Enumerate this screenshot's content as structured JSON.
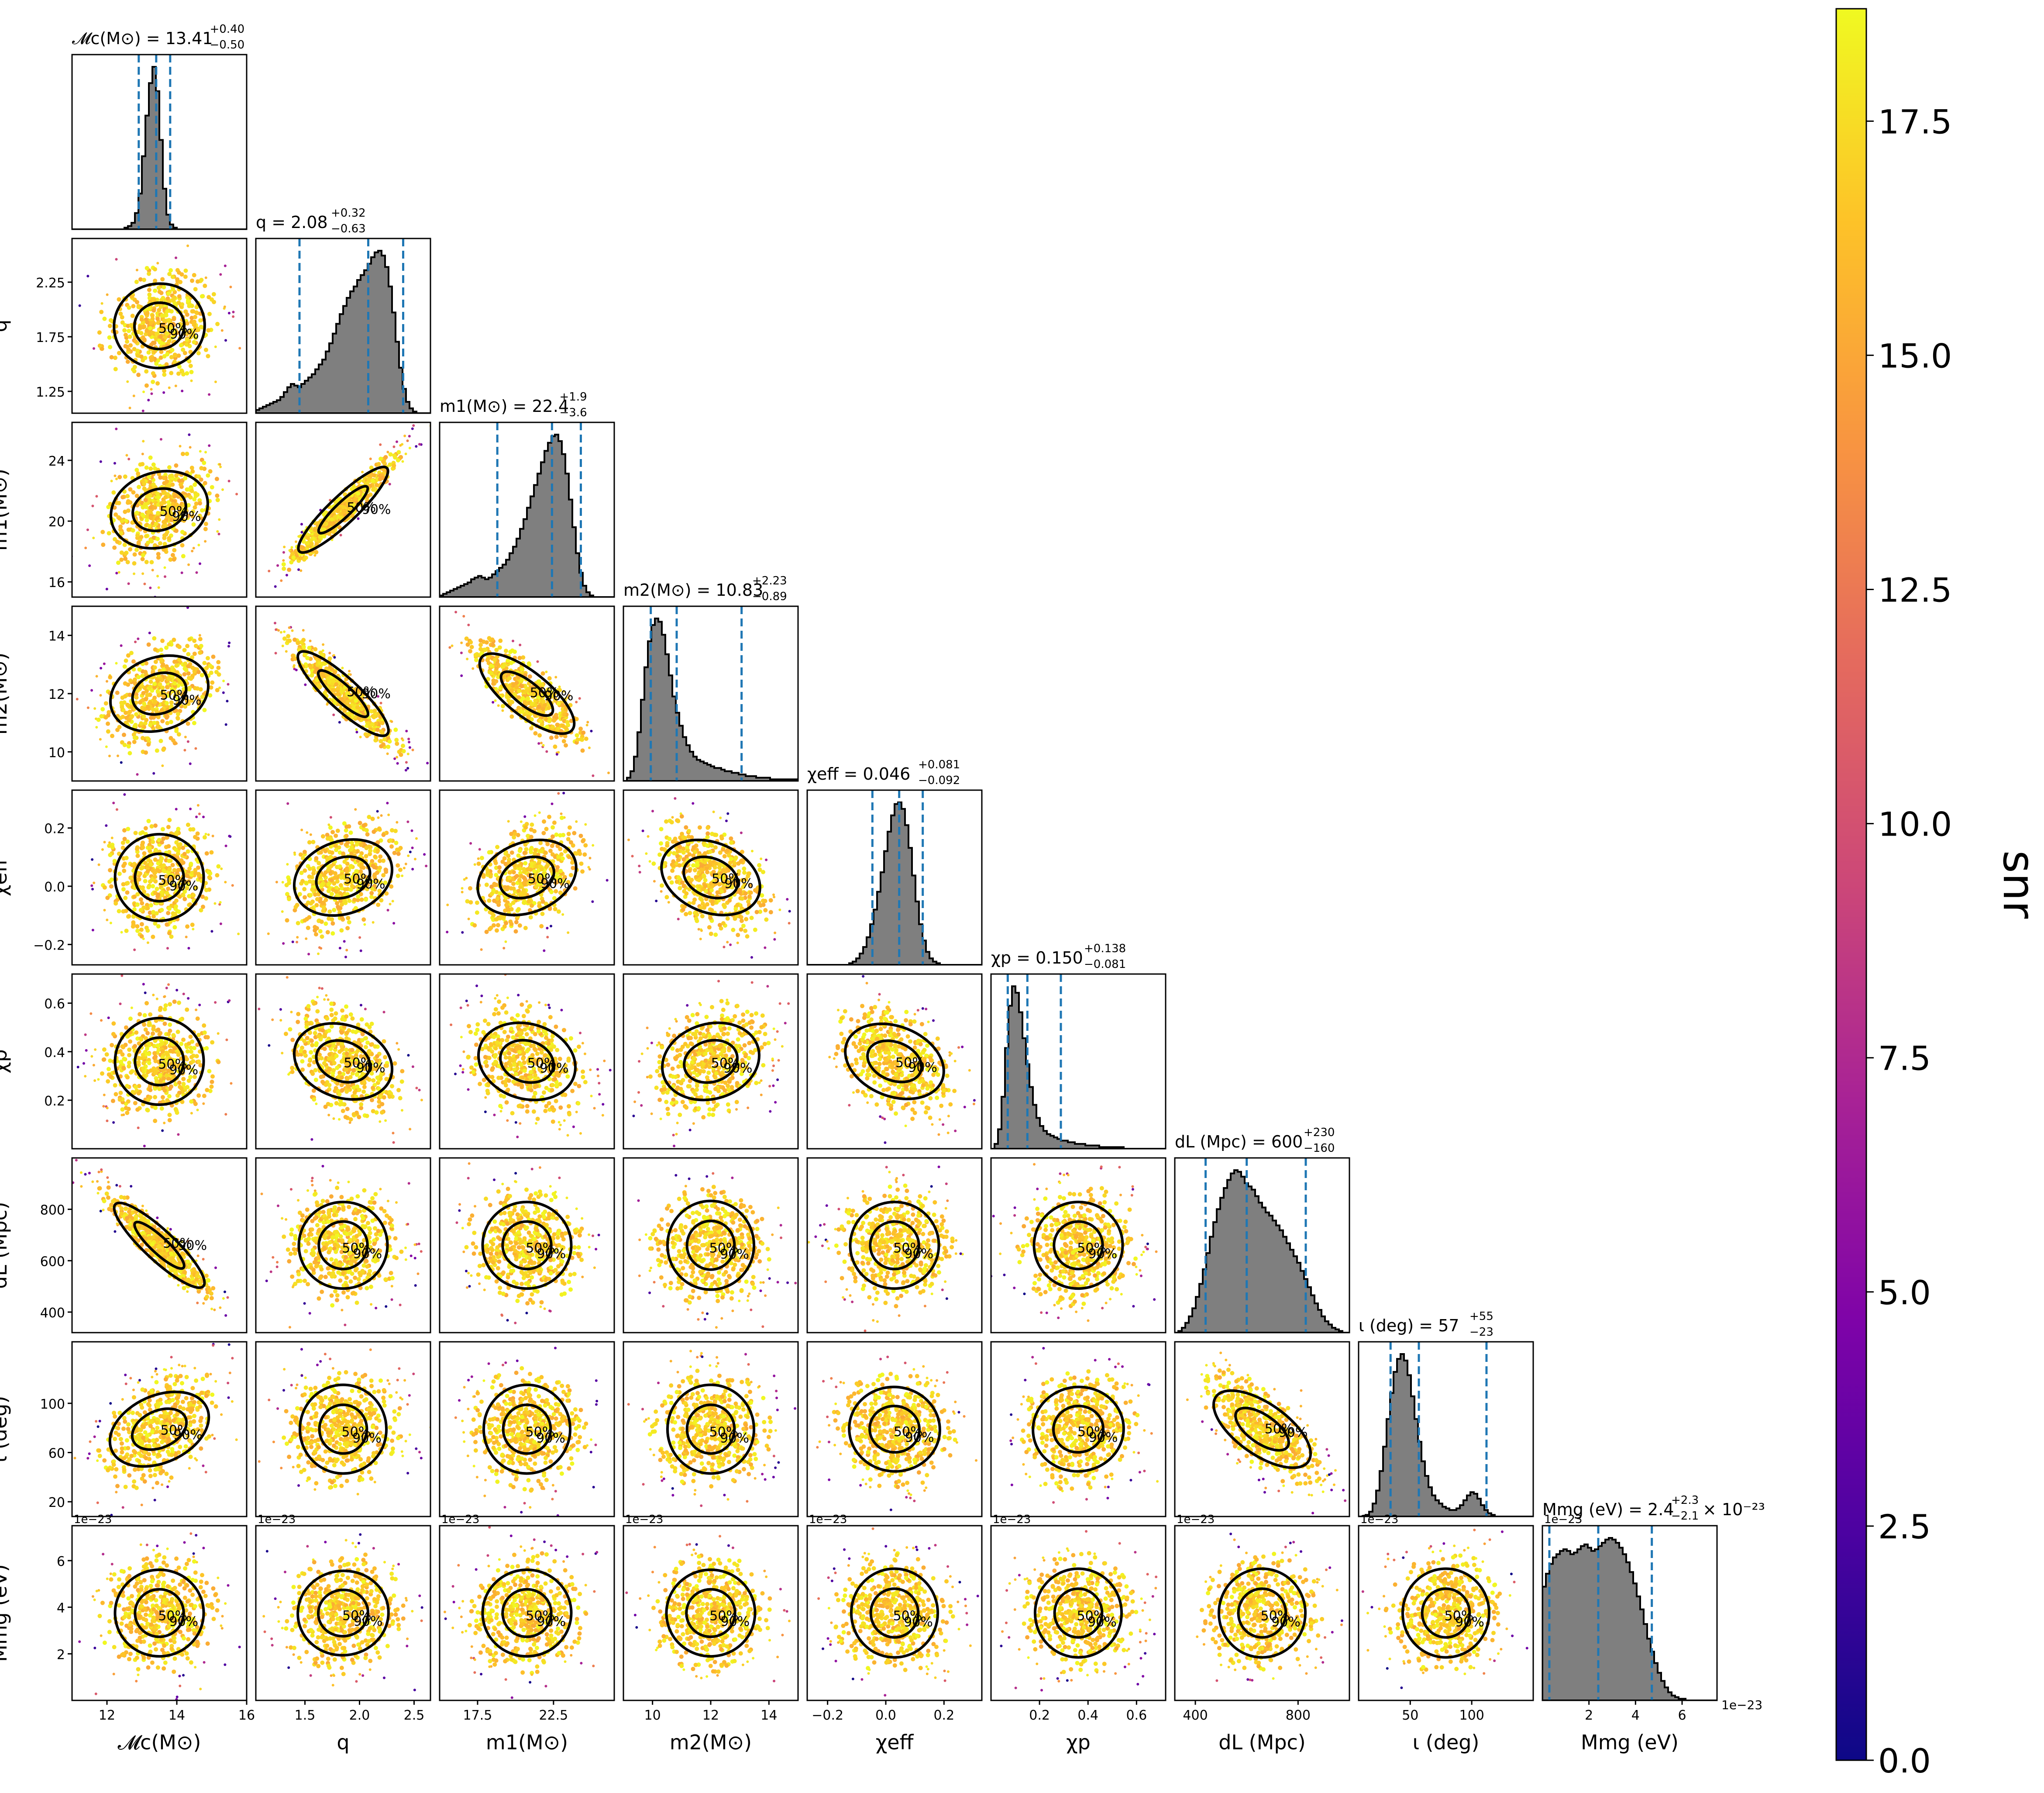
{
  "chart_data": {
    "type": "corner",
    "colorbar": {
      "label": "snr",
      "ticks": [
        "0.0",
        "2.5",
        "5.0",
        "7.5",
        "10.0",
        "12.5",
        "15.0",
        "17.5"
      ],
      "range": [
        0,
        18.7
      ],
      "colormap": "plasma"
    },
    "contour_levels": [
      "50%",
      "90%"
    ],
    "colors": {
      "hist_fill": "#7f7f7f",
      "hist_edge": "#000000",
      "quantile_line": "#1f77b4",
      "contour": "#000000"
    },
    "parameters": [
      {
        "key": "mc",
        "axis_label": "𝓜c(M⊙)",
        "range": [
          11,
          16
        ],
        "ticks": [
          {
            "v": 12,
            "t": "12"
          },
          {
            "v": 14,
            "t": "14"
          },
          {
            "v": 16,
            "t": "16"
          }
        ],
        "title": "𝓜c(M⊙) = 13.41",
        "title_sup": "+0.40",
        "title_sub": "−0.50",
        "median": 13.41,
        "lo": 12.91,
        "hi": 13.81,
        "hist": [
          0,
          0,
          0,
          0,
          0,
          0,
          0,
          0,
          0,
          0,
          0,
          0,
          0,
          0,
          0,
          1,
          2,
          4,
          10,
          22,
          45,
          70,
          90,
          100,
          85,
          55,
          25,
          9,
          3,
          1,
          0,
          0,
          0,
          0,
          0,
          0,
          0,
          0,
          0,
          0,
          0,
          0,
          0,
          0,
          0,
          0,
          0,
          0,
          0,
          0
        ]
      },
      {
        "key": "q",
        "axis_label": "q",
        "range": [
          1.05,
          2.65
        ],
        "ticks": [
          {
            "v": 1.25,
            "t": "1.25"
          },
          {
            "v": 1.75,
            "t": "1.75"
          },
          {
            "v": 2.25,
            "t": "2.25"
          }
        ],
        "xticks": [
          {
            "v": 1.5,
            "t": "1.5"
          },
          {
            "v": 2.0,
            "t": "2.0"
          },
          {
            "v": 2.5,
            "t": "2.5"
          }
        ],
        "title": "q = 2.08",
        "title_sup": "+0.32",
        "title_sub": "−0.63",
        "median": 2.08,
        "lo": 1.45,
        "hi": 2.4,
        "hist": [
          2,
          3,
          4,
          5,
          6,
          7,
          8,
          10,
          13,
          16,
          18,
          17,
          16,
          18,
          20,
          22,
          24,
          27,
          30,
          33,
          38,
          43,
          49,
          55,
          61,
          66,
          71,
          75,
          78,
          82,
          85,
          88,
          92,
          96,
          99,
          100,
          97,
          90,
          78,
          62,
          44,
          28,
          15,
          7,
          3,
          1,
          0,
          0,
          0,
          0
        ]
      },
      {
        "key": "m1",
        "axis_label": "m1(M⊙)",
        "range": [
          15.0,
          26.5
        ],
        "ticks": [
          {
            "v": 16,
            "t": "16"
          },
          {
            "v": 20,
            "t": "20"
          },
          {
            "v": 24,
            "t": "24"
          }
        ],
        "xticks": [
          {
            "v": 17.5,
            "t": "17.5"
          },
          {
            "v": 22.5,
            "t": "22.5"
          }
        ],
        "title": "m1(M⊙) = 22.4",
        "title_sup": "+1.9",
        "title_sub": "−3.6",
        "median": 22.4,
        "lo": 18.8,
        "hi": 24.3,
        "hist": [
          1,
          2,
          3,
          4,
          5,
          6,
          7,
          8,
          9,
          11,
          12,
          13,
          12,
          11,
          12,
          14,
          16,
          18,
          20,
          23,
          27,
          31,
          36,
          42,
          48,
          55,
          62,
          69,
          76,
          83,
          90,
          95,
          99,
          100,
          96,
          88,
          76,
          60,
          43,
          27,
          15,
          7,
          3,
          1,
          0,
          0,
          0,
          0,
          0,
          0
        ]
      },
      {
        "key": "m2",
        "axis_label": "m2(M⊙)",
        "range": [
          9.0,
          15.0
        ],
        "ticks": [
          {
            "v": 10,
            "t": "10"
          },
          {
            "v": 12,
            "t": "12"
          },
          {
            "v": 14,
            "t": "14"
          }
        ],
        "xticks": [
          {
            "v": 10,
            "t": "10"
          },
          {
            "v": 12,
            "t": "12"
          },
          {
            "v": 14,
            "t": "14"
          }
        ],
        "title": "m2(M⊙) = 10.83",
        "title_sup": "+2.23",
        "title_sub": "−0.89",
        "median": 10.83,
        "lo": 9.94,
        "hi": 13.06,
        "hist": [
          0,
          2,
          6,
          15,
          30,
          50,
          70,
          86,
          96,
          100,
          98,
          90,
          78,
          65,
          52,
          42,
          34,
          27,
          22,
          18,
          15,
          13,
          12,
          11,
          10,
          9,
          8,
          8,
          7,
          6,
          6,
          5,
          5,
          4,
          4,
          3,
          3,
          3,
          2,
          2,
          2,
          2,
          1,
          1,
          1,
          1,
          1,
          1,
          1,
          1
        ]
      },
      {
        "key": "chieff",
        "axis_label": "χeff",
        "range": [
          -0.27,
          0.33
        ],
        "ticks": [
          {
            "v": -0.2,
            "t": "−0.2"
          },
          {
            "v": 0.0,
            "t": "0.0"
          },
          {
            "v": 0.2,
            "t": "0.2"
          }
        ],
        "xticks": [
          {
            "v": -0.2,
            "t": "−0.2"
          },
          {
            "v": 0.0,
            "t": "0.0"
          },
          {
            "v": 0.2,
            "t": "0.2"
          }
        ],
        "title": "χeff = 0.046",
        "title_sup": "+0.081",
        "title_sub": "−0.092",
        "median": 0.046,
        "lo": -0.046,
        "hi": 0.127,
        "hist": [
          0,
          0,
          0,
          0,
          0,
          0,
          0,
          0,
          0,
          0,
          0,
          0,
          1,
          2,
          4,
          7,
          11,
          17,
          25,
          34,
          45,
          57,
          70,
          82,
          92,
          99,
          100,
          96,
          86,
          72,
          55,
          39,
          25,
          15,
          8,
          4,
          2,
          1,
          0,
          0,
          0,
          0,
          0,
          0,
          0,
          0,
          0,
          0,
          0,
          0
        ]
      },
      {
        "key": "chip",
        "axis_label": "χp",
        "range": [
          0.0,
          0.72
        ],
        "ticks": [
          {
            "v": 0.2,
            "t": "0.2"
          },
          {
            "v": 0.4,
            "t": "0.4"
          },
          {
            "v": 0.6,
            "t": "0.6"
          }
        ],
        "xticks": [
          {
            "v": 0.2,
            "t": "0.2"
          },
          {
            "v": 0.4,
            "t": "0.4"
          },
          {
            "v": 0.6,
            "t": "0.6"
          }
        ],
        "title": "χp = 0.150",
        "title_sup": "+0.138",
        "title_sub": "−0.081",
        "median": 0.15,
        "lo": 0.069,
        "hi": 0.288,
        "hist": [
          0,
          3,
          12,
          32,
          62,
          88,
          100,
          96,
          84,
          68,
          52,
          38,
          27,
          19,
          14,
          11,
          9,
          8,
          7,
          6,
          5,
          5,
          4,
          4,
          3,
          3,
          3,
          2,
          2,
          2,
          2,
          1,
          1,
          1,
          1,
          1,
          1,
          1,
          0,
          0,
          0,
          0,
          0,
          0,
          0,
          0,
          0,
          0,
          0,
          0
        ]
      },
      {
        "key": "dl",
        "axis_label": "dL (Mpc)",
        "range": [
          320,
          1000
        ],
        "ticks": [
          {
            "v": 400,
            "t": "400"
          },
          {
            "v": 600,
            "t": "600"
          },
          {
            "v": 800,
            "t": "800"
          }
        ],
        "xticks": [
          {
            "v": 400,
            "t": "400"
          },
          {
            "v": 800,
            "t": "800"
          }
        ],
        "title": "dL (Mpc) = 600",
        "title_sup": "+230",
        "title_sub": "−160",
        "median": 600,
        "lo": 440,
        "hi": 830,
        "hist": [
          0,
          1,
          3,
          6,
          10,
          15,
          22,
          30,
          39,
          49,
          59,
          68,
          76,
          83,
          89,
          94,
          98,
          100,
          99,
          96,
          92,
          90,
          88,
          84,
          80,
          77,
          74,
          72,
          69,
          66,
          63,
          59,
          55,
          51,
          47,
          43,
          38,
          33,
          28,
          23,
          18,
          14,
          10,
          7,
          5,
          3,
          2,
          1,
          0,
          0
        ]
      },
      {
        "key": "iota",
        "axis_label": "ι (deg)",
        "range": [
          8,
          150
        ],
        "ticks": [
          {
            "v": 20,
            "t": "20"
          },
          {
            "v": 60,
            "t": "60"
          },
          {
            "v": 100,
            "t": "100"
          }
        ],
        "xticks": [
          {
            "v": 50,
            "t": "50"
          },
          {
            "v": 100,
            "t": "100"
          }
        ],
        "title": "ι (deg) = 57",
        "title_sup": "+55",
        "title_sub": "−23",
        "median": 57,
        "lo": 34,
        "hi": 112,
        "hist": [
          0,
          0,
          1,
          3,
          8,
          16,
          28,
          43,
          60,
          76,
          89,
          97,
          100,
          96,
          87,
          74,
          60,
          46,
          34,
          25,
          18,
          13,
          10,
          8,
          6,
          5,
          4,
          4,
          5,
          7,
          10,
          13,
          15,
          14,
          11,
          7,
          4,
          2,
          1,
          0,
          0,
          0,
          0,
          0,
          0,
          0,
          0,
          0,
          0,
          0
        ]
      },
      {
        "key": "mmg",
        "axis_label": "Mmg (eV)",
        "range": [
          0.0,
          7.5
        ],
        "offset_text": "1e−23",
        "ticks": [
          {
            "v": 2,
            "t": "2"
          },
          {
            "v": 4,
            "t": "4"
          },
          {
            "v": 6,
            "t": "6"
          }
        ],
        "xticks": [
          {
            "v": 2,
            "t": "2"
          },
          {
            "v": 4,
            "t": "4"
          },
          {
            "v": 6,
            "t": "6"
          }
        ],
        "title": "Mmg (eV) = 2.4",
        "title_sup": "+2.3",
        "title_sub": "−2.1",
        "title_suffix": "× 10⁻²³",
        "median": 2.4,
        "lo": 0.3,
        "hi": 4.7,
        "hist": [
          70,
          78,
          84,
          88,
          90,
          92,
          93,
          92,
          90,
          91,
          93,
          95,
          96,
          94,
          92,
          93,
          95,
          97,
          99,
          100,
          99,
          97,
          94,
          90,
          85,
          79,
          72,
          64,
          56,
          47,
          38,
          30,
          23,
          17,
          12,
          8,
          5,
          3,
          2,
          1,
          1,
          0,
          0,
          0,
          0,
          0,
          0,
          0,
          0,
          0
        ]
      }
    ],
    "bottom_labels": [
      "𝓜c(M⊙)",
      "q",
      "m1(M⊙)",
      "m2(M⊙)",
      "χeff",
      "χp",
      "dL (Mpc)",
      "ι (deg)",
      "Mmg (eV)"
    ],
    "correlations": [
      [
        0.0,
        0,
        0,
        0,
        0,
        0,
        0,
        0,
        0
      ],
      [
        0.1,
        0,
        0,
        0,
        0,
        0,
        0,
        0,
        0
      ],
      [
        0.3,
        0.95,
        0,
        0,
        0,
        0,
        0,
        0,
        0
      ],
      [
        0.35,
        -0.92,
        -0.8,
        0,
        0,
        0,
        0,
        0,
        0
      ],
      [
        0.05,
        0.35,
        0.4,
        -0.4,
        0,
        0,
        0,
        0,
        0
      ],
      [
        0.05,
        -0.35,
        -0.3,
        0.3,
        -0.4,
        0,
        0,
        0,
        0
      ],
      [
        -0.93,
        0.05,
        -0.05,
        0.0,
        0.05,
        0.05,
        0,
        0,
        0
      ],
      [
        0.45,
        0.0,
        0.0,
        0.0,
        -0.1,
        0.1,
        -0.7,
        0,
        0
      ],
      [
        0.05,
        0.1,
        0.05,
        0.05,
        0.0,
        0.0,
        0.0,
        0.0,
        0
      ]
    ]
  }
}
